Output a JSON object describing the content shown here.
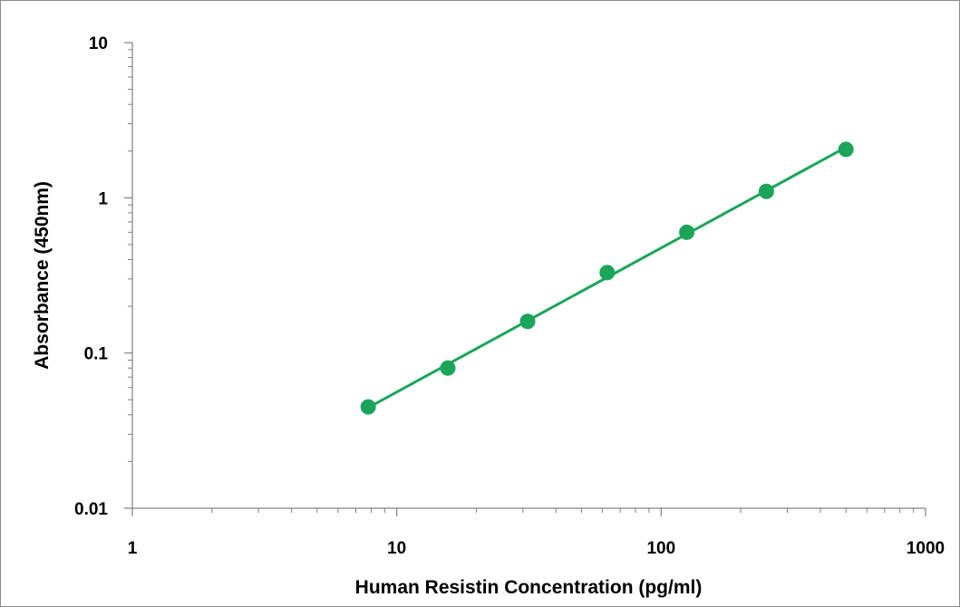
{
  "chart_data": {
    "type": "scatter",
    "title": "",
    "xlabel": "Human Resistin Concentration (pg/ml)",
    "ylabel": "Absorbance (450nm)",
    "x_scale": "log",
    "y_scale": "log",
    "xlim": [
      1,
      1000
    ],
    "ylim": [
      0.01,
      10
    ],
    "x_tick_labels": [
      "1",
      "10",
      "100",
      "1000"
    ],
    "y_tick_labels": [
      "10",
      "1",
      "0.1",
      "0.01"
    ],
    "grid": false,
    "legend": "none",
    "series": [
      {
        "x": [
          7.8,
          15.6,
          31.25,
          62.5,
          125,
          250,
          500
        ],
        "y": [
          0.045,
          0.08,
          0.16,
          0.33,
          0.6,
          1.1,
          2.05
        ],
        "color": "#1aa55a",
        "markers": true,
        "line": "fit"
      }
    ]
  }
}
